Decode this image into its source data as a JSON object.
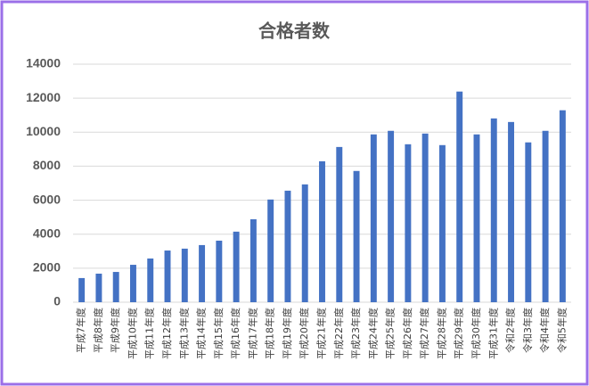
{
  "chart_data": {
    "type": "bar",
    "title": "合格者数",
    "categories": [
      "平成7年度",
      "平成8年度",
      "平成9年度",
      "平成10年度",
      "平成11年度",
      "平成12年度",
      "平成13年度",
      "平成14年度",
      "平成15年度",
      "平成16年度",
      "平成17年度",
      "平成18年度",
      "平成19年度",
      "平成20年度",
      "平成21年度",
      "平成22年度",
      "平成23年度",
      "平成24年度",
      "平成25年度",
      "平成26年度",
      "平成27年度",
      "平成28年度",
      "平成29年度",
      "平成30年度",
      "平成31年度",
      "令和2年度",
      "令和3年度",
      "令和4年度",
      "令和5年度"
    ],
    "values": [
      1420,
      1680,
      1780,
      2200,
      2570,
      3040,
      3150,
      3360,
      3620,
      4150,
      4880,
      6040,
      6560,
      6930,
      8290,
      9130,
      7720,
      9870,
      10080,
      9290,
      9920,
      9240,
      12390,
      9870,
      10810,
      10600,
      9400,
      10080,
      11290
    ],
    "color": "#4472c4",
    "ylim": [
      0,
      14000
    ],
    "yticks": [
      0,
      2000,
      4000,
      6000,
      8000,
      10000,
      12000,
      14000
    ],
    "grid": true
  }
}
